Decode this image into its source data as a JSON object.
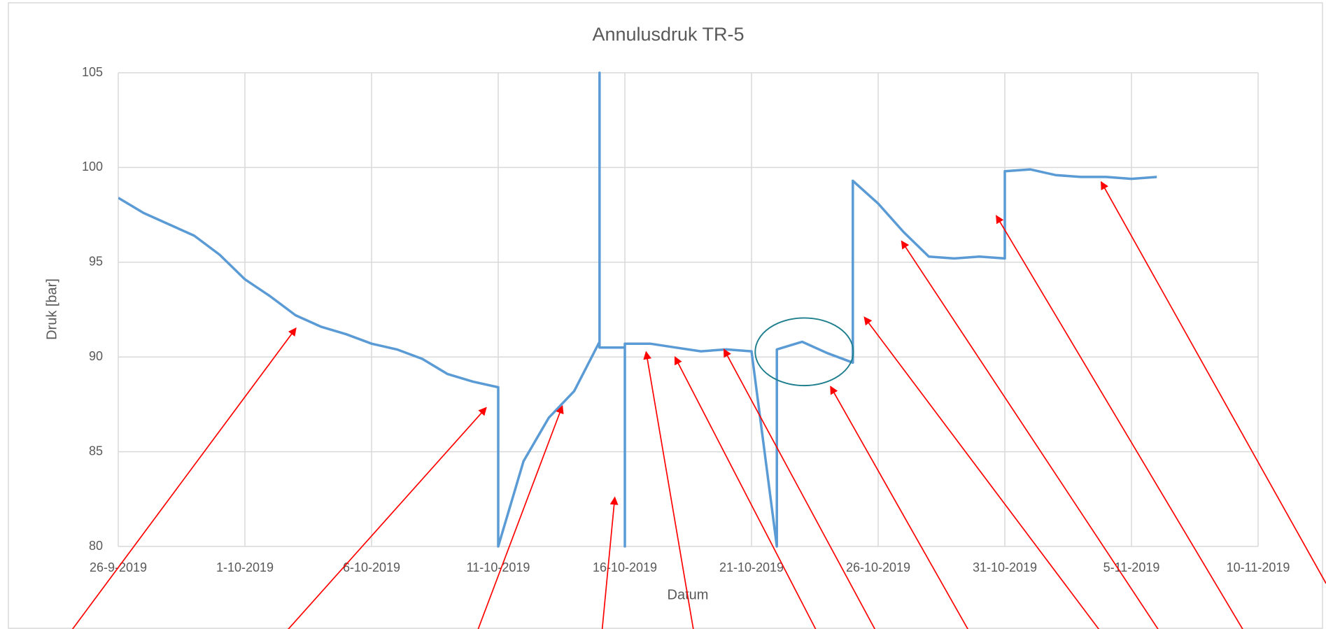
{
  "chart_data": {
    "type": "line",
    "title": "Annulusdruk TR-5",
    "x_label": "Datum",
    "y_label": "Druk [bar]",
    "xlim": [
      "2019-09-26",
      "2019-11-10"
    ],
    "xticks": [
      {
        "value": "2019-09-26",
        "label": "26-9-2019"
      },
      {
        "value": "2019-10-01",
        "label": "1-10-2019"
      },
      {
        "value": "2019-10-06",
        "label": "6-10-2019"
      },
      {
        "value": "2019-10-11",
        "label": "11-10-2019"
      },
      {
        "value": "2019-10-16",
        "label": "16-10-2019"
      },
      {
        "value": "2019-10-21",
        "label": "21-10-2019"
      },
      {
        "value": "2019-10-26",
        "label": "26-10-2019"
      },
      {
        "value": "2019-10-31",
        "label": "31-10-2019"
      },
      {
        "value": "2019-11-05",
        "label": "5-11-2019"
      },
      {
        "value": "2019-11-10",
        "label": "10-11-2019"
      }
    ],
    "ylim": [
      80,
      105
    ],
    "yticks": [
      80,
      85,
      90,
      95,
      100,
      105
    ],
    "grid": true,
    "x": [
      "2019-09-26",
      "2019-09-27",
      "2019-09-28",
      "2019-09-29",
      "2019-09-30",
      "2019-10-01",
      "2019-10-02",
      "2019-10-03",
      "2019-10-04",
      "2019-10-05",
      "2019-10-06",
      "2019-10-07",
      "2019-10-08",
      "2019-10-09",
      "2019-10-10",
      "2019-10-11",
      "2019-10-11",
      "2019-10-12",
      "2019-10-13",
      "2019-10-14",
      "2019-10-15",
      "2019-10-15",
      "2019-10-15",
      "2019-10-16",
      "2019-10-16",
      "2019-10-16",
      "2019-10-17",
      "2019-10-18",
      "2019-10-19",
      "2019-10-20",
      "2019-10-21",
      "2019-10-22",
      "2019-10-22",
      "2019-10-23",
      "2019-10-24",
      "2019-10-25",
      "2019-10-25",
      "2019-10-26",
      "2019-10-27",
      "2019-10-28",
      "2019-10-29",
      "2019-10-30",
      "2019-10-31",
      "2019-10-31",
      "2019-11-01",
      "2019-11-02",
      "2019-11-03",
      "2019-11-04",
      "2019-11-05",
      "2019-11-06"
    ],
    "series": [
      {
        "name": "Annulusdruk",
        "color": "#5b9bd5",
        "values": [
          98.4,
          97.6,
          97.0,
          96.4,
          95.4,
          94.1,
          93.2,
          92.2,
          91.6,
          91.2,
          90.7,
          90.4,
          89.9,
          89.1,
          88.7,
          88.4,
          80,
          84.5,
          86.8,
          88.2,
          90.8,
          105,
          90.5,
          90.5,
          80,
          90.7,
          90.7,
          90.5,
          90.3,
          90.4,
          90.3,
          80,
          90.4,
          90.8,
          90.2,
          89.7,
          99.3,
          98.1,
          96.6,
          95.3,
          95.2,
          95.3,
          95.2,
          99.8,
          99.9,
          99.6,
          99.5,
          99.5,
          99.4,
          99.5
        ]
      }
    ]
  }
}
